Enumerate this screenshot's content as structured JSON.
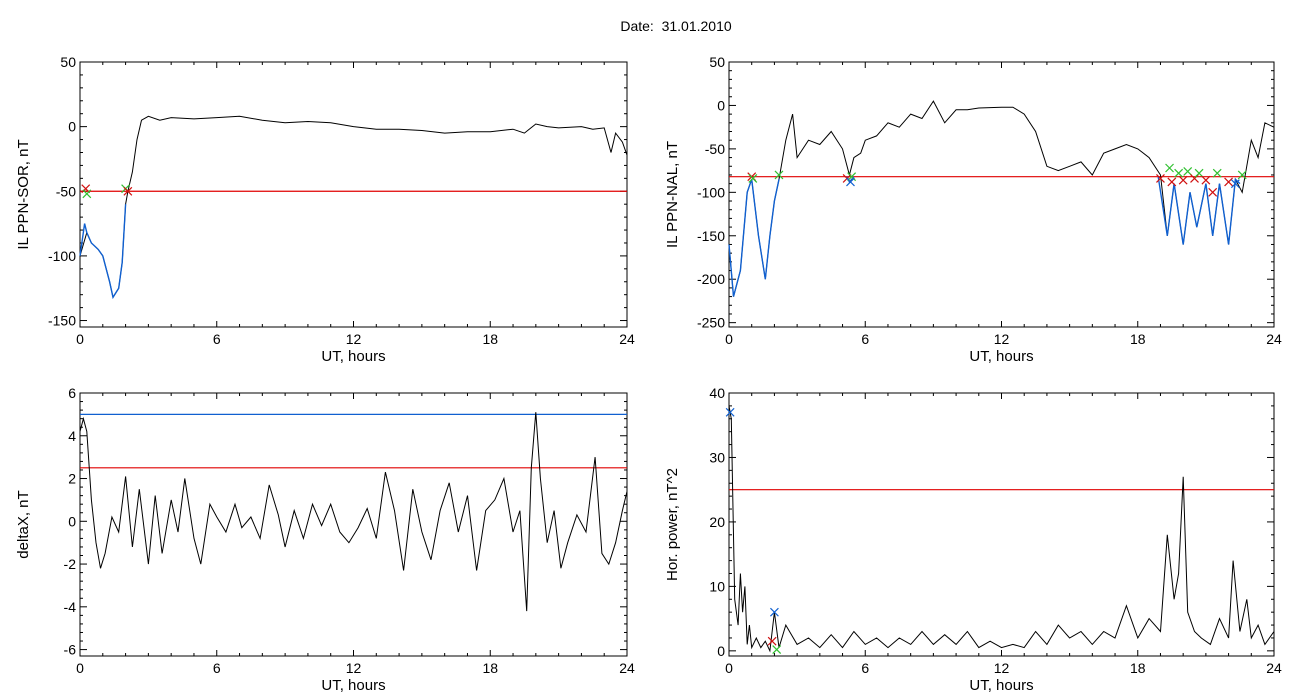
{
  "header": {
    "title": "Date:  31.01.2010"
  },
  "colors": {
    "trace": "#000000",
    "threshold_red": "#e00000",
    "threshold_blue": "#1060d0",
    "marker_red": "#d01010",
    "marker_green": "#30c030",
    "marker_blue": "#1060d0"
  },
  "chart_data": [
    {
      "type": "line",
      "ylabel": "IL PPN-SOR, nT",
      "xlabel": "UT, hours",
      "xlim": [
        0,
        24
      ],
      "ylim": [
        -155,
        50
      ],
      "xticks": [
        0,
        6,
        12,
        18,
        24
      ],
      "yticks": [
        50,
        0,
        -50,
        -100,
        -150
      ],
      "thresholds": [
        {
          "y": -50,
          "color": "red"
        }
      ],
      "series": [
        {
          "style": "black",
          "x": [
            0,
            0.3,
            0.5,
            0.8,
            1.0,
            1.3,
            1.45,
            1.7,
            1.85,
            2.0,
            2.1,
            2.3,
            2.5,
            2.7,
            3,
            3.5,
            4,
            5,
            6,
            7,
            8,
            9,
            10,
            11,
            12,
            13,
            14,
            15,
            16,
            17,
            18,
            19,
            19.5,
            20,
            20.5,
            21,
            22,
            22.5,
            23,
            23.3,
            23.5,
            23.8,
            24
          ],
          "y": [
            -100,
            -82,
            -90,
            -95,
            -100,
            -120,
            -132,
            -125,
            -105,
            -60,
            -50,
            -35,
            -10,
            5,
            8,
            5,
            7,
            6,
            7,
            8,
            5,
            3,
            4,
            3,
            0,
            -2,
            -2,
            -3,
            -5,
            -4,
            -4,
            -2,
            -5,
            2,
            0,
            -1,
            0,
            -2,
            -1,
            -20,
            -5,
            -12,
            -22
          ]
        },
        {
          "style": "blue",
          "x": [
            0,
            0.2,
            0.3,
            0.5,
            0.8,
            1.0,
            1.3,
            1.45,
            1.7,
            1.85,
            2.0
          ],
          "y": [
            -100,
            -75,
            -82,
            -90,
            -95,
            -100,
            -120,
            -132,
            -125,
            -105,
            -60
          ]
        }
      ],
      "markers": [
        {
          "x": 0.25,
          "y": -48,
          "kind": "red"
        },
        {
          "x": 0.3,
          "y": -52,
          "kind": "green"
        },
        {
          "x": 2.0,
          "y": -48,
          "kind": "green"
        },
        {
          "x": 2.1,
          "y": -50,
          "kind": "red"
        }
      ]
    },
    {
      "type": "line",
      "ylabel": "IL PPN-NAL, nT",
      "xlabel": "UT, hours",
      "xlim": [
        0,
        24
      ],
      "ylim": [
        -255,
        50
      ],
      "xticks": [
        0,
        6,
        12,
        18,
        24
      ],
      "yticks": [
        50,
        0,
        -50,
        -100,
        -150,
        -200,
        -250
      ],
      "thresholds": [
        {
          "y": -82,
          "color": "red"
        }
      ],
      "series": [
        {
          "style": "black",
          "x": [
            0,
            0.2,
            0.5,
            0.8,
            1.0,
            1.3,
            1.6,
            1.8,
            2.0,
            2.2,
            2.5,
            2.8,
            3,
            3.5,
            4,
            4.5,
            5,
            5.3,
            5.5,
            5.8,
            6,
            6.5,
            7,
            7.5,
            8,
            8.5,
            9,
            9.5,
            10,
            10.5,
            11,
            12,
            12.5,
            13,
            13.5,
            14,
            14.5,
            15,
            15.5,
            16,
            16.5,
            17,
            17.5,
            18,
            18.5,
            19,
            19.3,
            19.6,
            20,
            20.3,
            20.6,
            21,
            21.3,
            21.6,
            22,
            22.3,
            22.6,
            23,
            23.3,
            23.6,
            24
          ],
          "y": [
            -160,
            -220,
            -190,
            -100,
            -85,
            -150,
            -200,
            -150,
            -110,
            -85,
            -40,
            -10,
            -60,
            -40,
            -45,
            -30,
            -50,
            -80,
            -60,
            -55,
            -40,
            -35,
            -20,
            -25,
            -10,
            -15,
            5,
            -20,
            -5,
            -5,
            -3,
            -2,
            -2,
            -10,
            -30,
            -70,
            -75,
            -70,
            -65,
            -80,
            -55,
            -50,
            -45,
            -50,
            -60,
            -80,
            -150,
            -90,
            -160,
            -100,
            -140,
            -90,
            -150,
            -90,
            -160,
            -85,
            -100,
            -40,
            -60,
            -20,
            -25
          ]
        },
        {
          "style": "blue",
          "x": [
            0,
            0.2,
            0.5,
            0.8,
            1.0,
            1.3,
            1.6,
            1.8,
            2.0,
            2.2
          ],
          "y": [
            -160,
            -220,
            -190,
            -100,
            -85,
            -150,
            -200,
            -150,
            -110,
            -85
          ]
        },
        {
          "style": "blue",
          "x": [
            5.2,
            5.3,
            5.5
          ],
          "y": [
            -82,
            -88,
            -82
          ]
        },
        {
          "style": "blue",
          "x": [
            18.9,
            19.3,
            19.6,
            20,
            20.3,
            20.6,
            21,
            21.3,
            21.6,
            22,
            22.3,
            22.5
          ],
          "y": [
            -82,
            -150,
            -90,
            -160,
            -100,
            -140,
            -90,
            -150,
            -90,
            -160,
            -85,
            -90
          ]
        }
      ],
      "markers": [
        {
          "x": 1.0,
          "y": -82,
          "kind": "red"
        },
        {
          "x": 1.05,
          "y": -84,
          "kind": "green"
        },
        {
          "x": 2.2,
          "y": -80,
          "kind": "green"
        },
        {
          "x": 5.2,
          "y": -84,
          "kind": "red"
        },
        {
          "x": 5.4,
          "y": -82,
          "kind": "green"
        },
        {
          "x": 5.35,
          "y": -88,
          "kind": "blue"
        },
        {
          "x": 19.0,
          "y": -84,
          "kind": "red"
        },
        {
          "x": 19.4,
          "y": -72,
          "kind": "green"
        },
        {
          "x": 19.5,
          "y": -88,
          "kind": "red"
        },
        {
          "x": 19.8,
          "y": -78,
          "kind": "green"
        },
        {
          "x": 20.0,
          "y": -86,
          "kind": "red"
        },
        {
          "x": 20.2,
          "y": -76,
          "kind": "green"
        },
        {
          "x": 20.5,
          "y": -84,
          "kind": "red"
        },
        {
          "x": 20.7,
          "y": -78,
          "kind": "green"
        },
        {
          "x": 21.0,
          "y": -86,
          "kind": "red"
        },
        {
          "x": 21.3,
          "y": -100,
          "kind": "red"
        },
        {
          "x": 21.5,
          "y": -78,
          "kind": "green"
        },
        {
          "x": 22.0,
          "y": -88,
          "kind": "red"
        },
        {
          "x": 22.3,
          "y": -90,
          "kind": "blue"
        },
        {
          "x": 22.6,
          "y": -80,
          "kind": "green"
        }
      ]
    },
    {
      "type": "line",
      "ylabel": "deltaX, nT",
      "xlabel": "UT, hours",
      "xlim": [
        0,
        24
      ],
      "ylim": [
        -6.3,
        6
      ],
      "xticks": [
        0,
        6,
        12,
        18,
        24
      ],
      "yticks": [
        6,
        4,
        2,
        0,
        -2,
        -4,
        -6
      ],
      "thresholds": [
        {
          "y": 5,
          "color": "blue"
        },
        {
          "y": 2.5,
          "color": "red"
        }
      ],
      "series": [
        {
          "style": "black",
          "x": [
            0,
            0.15,
            0.3,
            0.5,
            0.7,
            0.9,
            1.1,
            1.4,
            1.7,
            2.0,
            2.3,
            2.6,
            3.0,
            3.3,
            3.6,
            4.0,
            4.3,
            4.6,
            5.0,
            5.3,
            5.7,
            6.0,
            6.4,
            6.8,
            7.1,
            7.5,
            7.9,
            8.3,
            8.7,
            9.0,
            9.4,
            9.8,
            10.2,
            10.6,
            11.0,
            11.4,
            11.8,
            12.2,
            12.6,
            13.0,
            13.4,
            13.8,
            14.2,
            14.6,
            15.0,
            15.4,
            15.8,
            16.2,
            16.6,
            17.0,
            17.4,
            17.8,
            18.2,
            18.6,
            19.0,
            19.3,
            19.6,
            19.8,
            20.0,
            20.2,
            20.5,
            20.8,
            21.1,
            21.4,
            21.8,
            22.2,
            22.6,
            22.9,
            23.2,
            23.5,
            23.8,
            24
          ],
          "y": [
            4.2,
            4.8,
            4.2,
            1,
            -1,
            -2.2,
            -1.5,
            0.2,
            -0.5,
            2.1,
            -1.2,
            1.5,
            -2,
            1.2,
            -1.5,
            1.0,
            -0.5,
            2.0,
            -0.8,
            -2.0,
            0.8,
            0.2,
            -0.5,
            0.8,
            -0.3,
            0.2,
            -0.8,
            1.7,
            0.3,
            -1.2,
            0.5,
            -0.8,
            0.8,
            -0.2,
            0.8,
            -0.5,
            -1.0,
            -0.3,
            0.6,
            -0.8,
            2.3,
            0.5,
            -2.3,
            1.5,
            -0.5,
            -1.8,
            0.5,
            1.8,
            -0.5,
            1.2,
            -2.3,
            0.5,
            1.0,
            2.0,
            -0.5,
            0.5,
            -4.2,
            2.5,
            5.1,
            2.0,
            -1.0,
            0.5,
            -2.2,
            -1.0,
            0.3,
            -0.5,
            3.0,
            -1.5,
            -2.0,
            -1.0,
            0.5,
            1.4
          ]
        }
      ],
      "markers": []
    },
    {
      "type": "line",
      "ylabel": "Hor. power, nT^2",
      "xlabel": "UT, hours",
      "xlim": [
        0,
        24
      ],
      "ylim": [
        -0.8,
        40
      ],
      "xticks": [
        0,
        6,
        12,
        18,
        24
      ],
      "yticks": [
        40,
        30,
        20,
        10,
        0
      ],
      "thresholds": [
        {
          "y": 25,
          "color": "red"
        }
      ],
      "series": [
        {
          "style": "black",
          "x": [
            0,
            0.1,
            0.25,
            0.4,
            0.5,
            0.6,
            0.7,
            0.8,
            0.9,
            1.0,
            1.2,
            1.4,
            1.6,
            1.8,
            2.0,
            2.2,
            2.5,
            3.0,
            3.5,
            4.0,
            4.5,
            5.0,
            5.5,
            6.0,
            6.5,
            7.0,
            7.5,
            8.0,
            8.5,
            9.0,
            9.5,
            10.0,
            10.5,
            11.0,
            11.5,
            12.0,
            12.5,
            13.0,
            13.5,
            14.0,
            14.5,
            15.0,
            15.5,
            16.0,
            16.5,
            17.0,
            17.5,
            18.0,
            18.5,
            19.0,
            19.3,
            19.6,
            19.8,
            20.0,
            20.2,
            20.5,
            20.8,
            21.2,
            21.6,
            22.0,
            22.2,
            22.5,
            22.8,
            23.0,
            23.3,
            23.6,
            24
          ],
          "y": [
            38,
            36,
            8,
            4,
            12,
            6,
            10,
            1,
            4,
            0.5,
            2,
            0.5,
            1.5,
            0,
            6,
            0.5,
            4,
            1,
            2,
            0.5,
            2.5,
            0.5,
            3,
            1,
            2,
            0.5,
            2,
            1,
            3,
            1,
            2.5,
            1,
            3,
            0.5,
            1.5,
            0.5,
            1,
            0.5,
            3,
            1,
            4,
            2,
            3,
            1,
            3,
            2,
            7,
            2,
            5,
            3,
            18,
            8,
            12,
            27,
            6,
            3,
            2,
            1,
            5,
            2,
            14,
            3,
            8,
            2,
            4,
            1,
            3
          ]
        }
      ],
      "markers": [
        {
          "x": 0.05,
          "y": 37,
          "kind": "blue"
        },
        {
          "x": 1.9,
          "y": 1.5,
          "kind": "red"
        },
        {
          "x": 2.0,
          "y": 6,
          "kind": "blue"
        },
        {
          "x": 2.1,
          "y": 0.2,
          "kind": "green"
        }
      ]
    }
  ]
}
